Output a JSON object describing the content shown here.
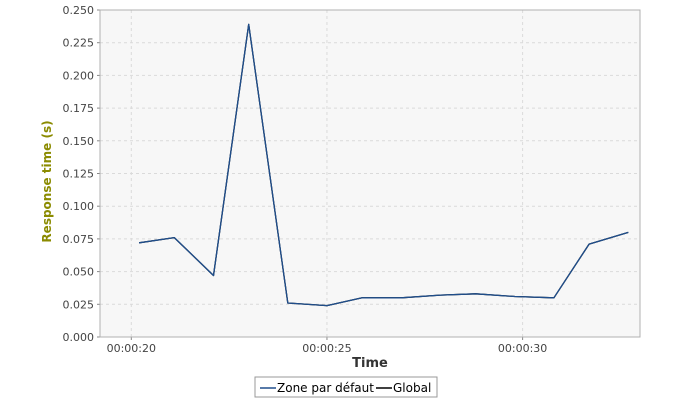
{
  "chart_data": {
    "type": "line",
    "title": "",
    "xlabel": "Time",
    "ylabel": "Response time (s)",
    "x_is_time": true,
    "xlim": [
      "00:00:19.200",
      "00:00:33.000"
    ],
    "ylim": [
      0,
      0.25
    ],
    "y_ticks": [
      0.0,
      0.025,
      0.05,
      0.075,
      0.1,
      0.125,
      0.15,
      0.175,
      0.2,
      0.225,
      0.25
    ],
    "y_tick_labels": [
      "0.000",
      "0.025",
      "0.050",
      "0.075",
      "0.100",
      "0.125",
      "0.150",
      "0.175",
      "0.200",
      "0.225",
      "0.250"
    ],
    "x_ticks": [
      "00:00:20",
      "00:00:25",
      "00:00:30"
    ],
    "grid": true,
    "legend_position": "bottom",
    "series": [
      {
        "name": "Zone par défaut",
        "color": "#1f4e8c",
        "x": [
          "00:00:20.200",
          "00:00:21.100",
          "00:00:22.100",
          "00:00:23.000",
          "00:00:24.000",
          "00:00:25.000",
          "00:00:25.900",
          "00:00:26.900",
          "00:00:27.900",
          "00:00:28.800",
          "00:00:29.800",
          "00:00:30.800",
          "00:00:31.700",
          "00:00:32.700"
        ],
        "values": [
          0.072,
          0.076,
          0.047,
          0.239,
          0.026,
          0.024,
          0.03,
          0.03,
          0.032,
          0.033,
          0.031,
          0.03,
          0.071,
          0.08
        ]
      },
      {
        "name": "Global",
        "color": "#000000",
        "x": [
          "00:00:20.200",
          "00:00:21.100",
          "00:00:22.100",
          "00:00:23.000",
          "00:00:24.000",
          "00:00:25.000",
          "00:00:25.900",
          "00:00:26.900",
          "00:00:27.900",
          "00:00:28.800",
          "00:00:29.800",
          "00:00:30.800",
          "00:00:31.700",
          "00:00:32.700"
        ],
        "values": [
          0.072,
          0.076,
          0.047,
          0.239,
          0.026,
          0.024,
          0.03,
          0.03,
          0.032,
          0.033,
          0.031,
          0.03,
          0.071,
          0.08
        ]
      }
    ],
    "colors": {
      "plot_background": "#f7f7f7",
      "grid": "#dadada",
      "axis_label": "#8b8b00",
      "tick_label": "#444444"
    }
  }
}
